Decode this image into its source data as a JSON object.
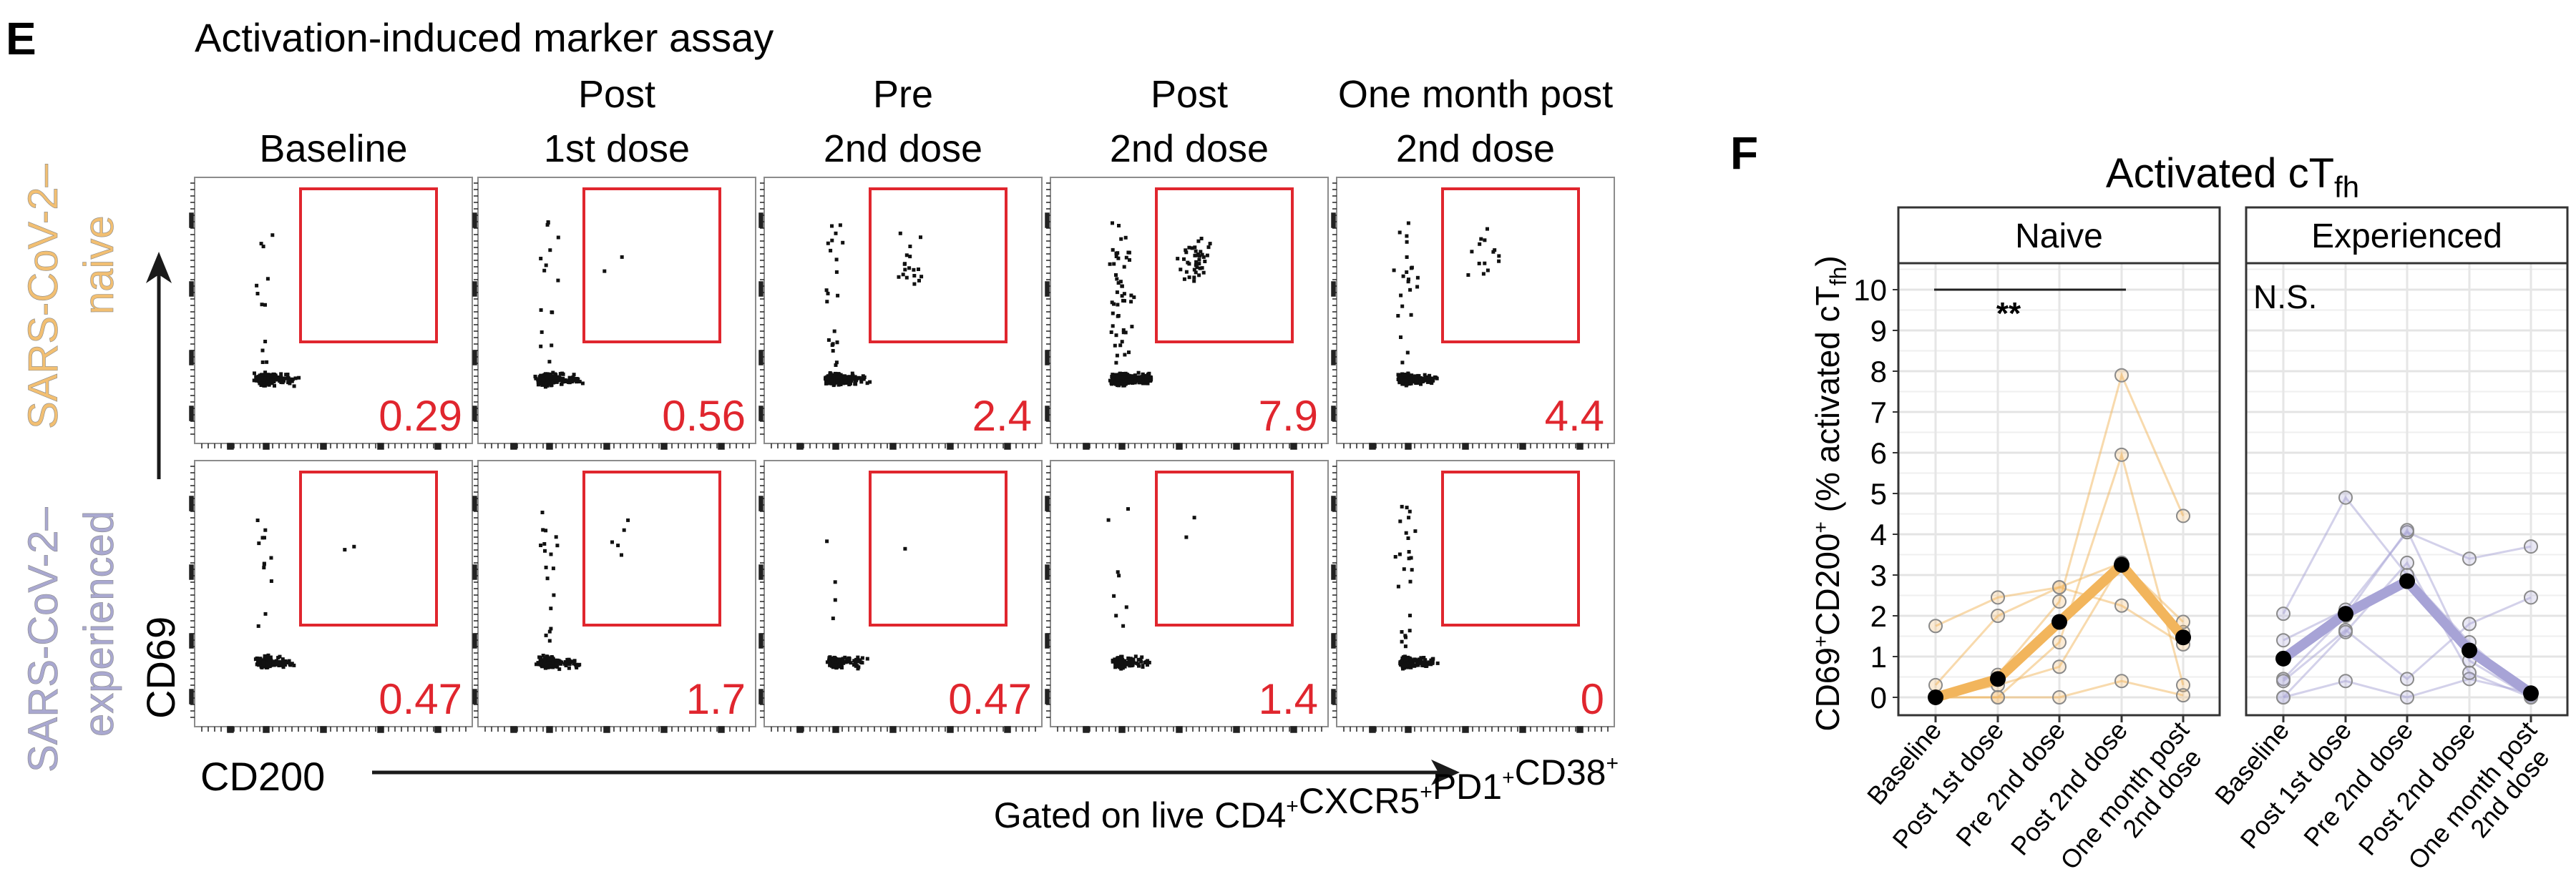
{
  "panel_e": {
    "letter": "E",
    "title": "Activation-induced marker assay",
    "column_headers": [
      {
        "line1": "",
        "line2": "Baseline"
      },
      {
        "line1": "Post",
        "line2": "1st dose"
      },
      {
        "line1": "Pre",
        "line2": "2nd dose"
      },
      {
        "line1": "Post",
        "line2": "2nd dose"
      },
      {
        "line1": "One month post",
        "line2": "2nd dose"
      }
    ],
    "rows": [
      {
        "label_line1": "SARS-CoV-2–",
        "label_line2": "naive",
        "color": "#f2bf72",
        "gate_values": [
          "0.29",
          "0.56",
          "2.4",
          "7.9",
          "4.4"
        ]
      },
      {
        "label_line1": "SARS-CoV-2–",
        "label_line2": "experienced",
        "color": "#a9a8d0",
        "gate_values": [
          "0.47",
          "1.7",
          "0.47",
          "1.4",
          "0"
        ]
      }
    ],
    "y_axis_label": "CD69",
    "x_axis_label": "CD200",
    "gating_note": {
      "prefix": "Gated on live ",
      "markers": [
        "CD4",
        "CXCR5",
        "PD1",
        "CD38"
      ],
      "sup": "+"
    },
    "gate_color": "#e0262e"
  },
  "chart_data": {
    "type": "line",
    "letter": "F",
    "title": "Activated cT",
    "title_sub": "fh",
    "ylabel": {
      "main": "CD69",
      "sup1": "+",
      "mid": "CD200",
      "sup2": "+",
      "tail": " (% activated cT",
      "sub": "fh",
      "end": ")"
    },
    "ylim": [
      -0.5,
      10.5
    ],
    "yticks": [
      0,
      1,
      2,
      3,
      4,
      5,
      6,
      7,
      8,
      9,
      10
    ],
    "grid": true,
    "categories": [
      "Baseline",
      "Post 1st dose",
      "Pre 2nd dose",
      "Post 2nd dose",
      "One month post\n2nd dose"
    ],
    "facets": [
      {
        "name": "Naive",
        "color": "#f2b55c",
        "annotation": "**",
        "bracket": {
          "from": 0,
          "to": 3,
          "y": 10
        },
        "mean": [
          0.0,
          0.45,
          1.85,
          3.25,
          1.47
        ],
        "individuals": [
          [
            1.75,
            2.45,
            2.7,
            2.25,
            1.3
          ],
          [
            0.3,
            2.0,
            2.7,
            3.3,
            1.6
          ],
          [
            0.0,
            0.55,
            2.35,
            7.9,
            4.45
          ],
          [
            0.0,
            0.0,
            1.35,
            5.95,
            0.3
          ],
          [
            0.0,
            0.3,
            0.75,
            3.3,
            1.85
          ],
          [
            0.0,
            0.0,
            0.0,
            0.4,
            0.05
          ]
        ]
      },
      {
        "name": "Experienced",
        "color": "#a7a3d6",
        "annotation": "N.S.",
        "mean": [
          0.95,
          2.05,
          2.85,
          1.15,
          0.1
        ],
        "individuals": [
          [
            2.05,
            4.9,
            3.0,
            1.35,
            0.05
          ],
          [
            1.4,
            2.15,
            4.05,
            3.4,
            3.7
          ],
          [
            0.45,
            2.0,
            4.1,
            0.9,
            0.0
          ],
          [
            0.0,
            0.4,
            0.0,
            0.45,
            0.1
          ],
          [
            0.4,
            1.65,
            0.45,
            1.8,
            2.45
          ],
          [
            0.0,
            1.6,
            3.3,
            0.6,
            0.0
          ]
        ]
      }
    ]
  }
}
